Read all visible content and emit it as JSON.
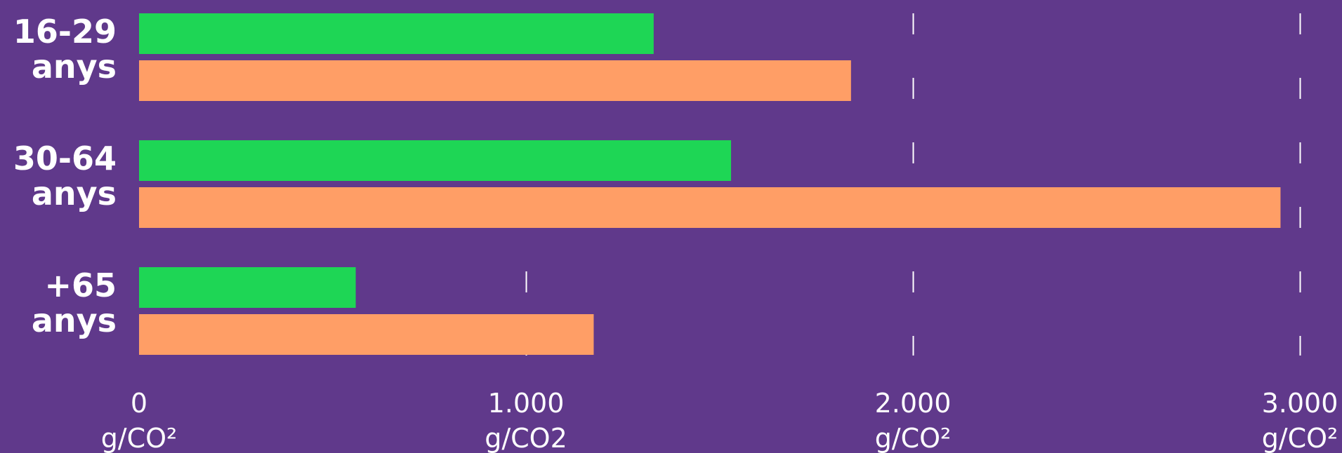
{
  "chart_data": {
    "type": "bar",
    "orientation": "horizontal",
    "categories": [
      [
        "16-29",
        "anys"
      ],
      [
        "30-64",
        "anys"
      ],
      [
        "+65",
        "anys"
      ]
    ],
    "series": [
      {
        "color": "#1ed655",
        "values": [
          1330,
          1530,
          560
        ]
      },
      {
        "color": "#ff9e66",
        "values": [
          1840,
          2950,
          1175
        ]
      }
    ],
    "x_ticks": [
      {
        "value": 0,
        "lines": [
          "0",
          "g/CO²"
        ]
      },
      {
        "value": 1000,
        "lines": [
          "1.000",
          "g/CO2"
        ]
      },
      {
        "value": 2000,
        "lines": [
          "2.000",
          "g/CO²"
        ]
      },
      {
        "value": 3000,
        "lines": [
          "3.000",
          "g/CO²"
        ]
      }
    ],
    "xlim": [
      0,
      3000
    ],
    "gridlines": "dashed vertical",
    "title": "",
    "xlabel": "",
    "ylabel": ""
  },
  "colors": {
    "background": "#60398b",
    "text": "#ffffff",
    "grid": "#ffffff"
  }
}
